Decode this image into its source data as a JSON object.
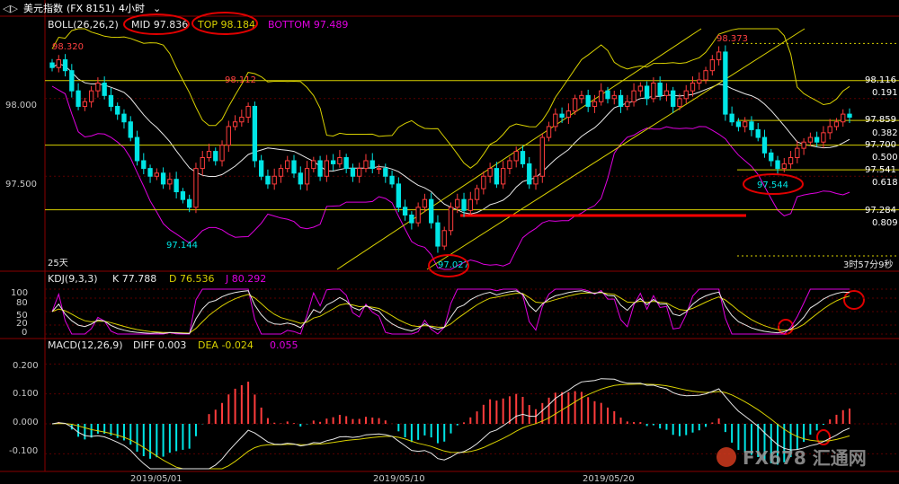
{
  "window": {
    "title": "美元指数",
    "symbol": "(FX 8151)",
    "period": "4小时"
  },
  "boll_header": {
    "name": "BOLL(26,26,2)",
    "mid": "MID 97.836",
    "top": "TOP 98.184",
    "bottom": "BOTTOM 97.489"
  },
  "kdj_header": {
    "name": "KDJ(9,3,3)",
    "k": "K 77.788",
    "d": "D 76.536",
    "j": "J 80.292"
  },
  "macd_header": {
    "name": "MACD(12,26,9)",
    "diff": "DIFF 0.003",
    "dea": "DEA -0.024",
    "macd": "0.055"
  },
  "price_axis": [
    "98.000",
    "97.500"
  ],
  "kdj_axis": [
    "100",
    "80",
    "50",
    "20",
    "0"
  ],
  "macd_axis": [
    "0.200",
    "0.100",
    "0.000",
    "-0.100"
  ],
  "date_axis": [
    "2019/05/01",
    "2019/05/10",
    "2019/05/20"
  ],
  "price_labels": {
    "p98320": "98.320",
    "p98112": "98.112",
    "p98373": "98.373",
    "p97144": "97.144",
    "p97027": "97.027",
    "p97544": "97.544",
    "days": "25天",
    "countdown": "3时57分9秒"
  },
  "fib_levels": [
    {
      "price": "98.116",
      "ratio": "0.191"
    },
    {
      "price": "97.859",
      "ratio": "0.382"
    },
    {
      "price": "97.700",
      "ratio": "0.500"
    },
    {
      "price": "97.541",
      "ratio": "0.618"
    },
    {
      "price": "97.284",
      "ratio": "0.809"
    }
  ],
  "watermark": "FX678 汇通网",
  "colors": {
    "up": "#ff3c3c",
    "down": "#00e5e5",
    "mid": "#e8e8e8",
    "upper": "#d8d000",
    "lower": "#e000e0",
    "fib": "#d8d000",
    "annotation": "#e00000"
  },
  "chart_data": {
    "type": "candlestick",
    "price_panel": {
      "ylim": [
        96.9,
        98.45
      ],
      "ticks": [
        98.0,
        97.5
      ],
      "boll": {
        "mid": 97.836,
        "top": 98.184,
        "bottom": 97.489
      },
      "fibonacci": [
        {
          "price": 98.116,
          "ratio": 0.191
        },
        {
          "price": 97.859,
          "ratio": 0.382
        },
        {
          "price": 97.7,
          "ratio": 0.5
        },
        {
          "price": 97.541,
          "ratio": 0.618
        },
        {
          "price": 97.284,
          "ratio": 0.809
        }
      ],
      "marked_points": [
        98.32,
        98.112,
        98.373,
        97.144,
        97.027,
        97.544
      ],
      "closes": [
        98.2,
        98.25,
        98.18,
        98.05,
        97.95,
        97.98,
        98.05,
        98.1,
        98.02,
        97.95,
        97.9,
        97.85,
        97.75,
        97.6,
        97.55,
        97.5,
        97.52,
        97.45,
        97.48,
        97.4,
        97.35,
        97.3,
        97.55,
        97.62,
        97.66,
        97.6,
        97.7,
        97.82,
        97.85,
        97.88,
        97.95,
        97.6,
        97.5,
        97.45,
        97.5,
        97.55,
        97.6,
        97.52,
        97.45,
        97.55,
        97.6,
        97.5,
        97.6,
        97.58,
        97.62,
        97.55,
        97.5,
        97.55,
        97.6,
        97.55,
        97.55,
        97.5,
        97.45,
        97.3,
        97.25,
        97.2,
        97.3,
        97.35,
        97.2,
        97.05,
        97.15,
        97.3,
        97.35,
        97.28,
        97.35,
        97.42,
        97.5,
        97.55,
        97.45,
        97.55,
        97.6,
        97.66,
        97.58,
        97.45,
        97.5,
        97.75,
        97.82,
        97.9,
        97.88,
        97.92,
        98.0,
        98.02,
        97.95,
        97.98,
        98.05,
        98.0,
        98.02,
        97.95,
        97.98,
        98.05,
        98.08,
        98.0,
        98.1,
        98.02,
        98.05,
        97.95,
        98.0,
        98.05,
        98.1,
        98.12,
        98.18,
        98.25,
        98.3,
        97.9,
        97.85,
        97.82,
        97.85,
        97.8,
        97.75,
        97.65,
        97.6,
        97.55,
        97.58,
        97.62,
        97.68,
        97.72,
        97.75,
        97.72,
        97.78,
        97.82,
        97.85,
        97.9,
        97.88
      ]
    },
    "kdj_panel": {
      "ylim": [
        0,
        100
      ],
      "ticks": [
        100,
        80,
        50,
        20,
        0
      ],
      "K": 77.788,
      "D": 76.536,
      "J": 80.292
    },
    "macd_panel": {
      "ylim": [
        -0.15,
        0.24
      ],
      "ticks": [
        0.2,
        0.1,
        0.0,
        -0.1
      ],
      "DIFF": 0.003,
      "DEA": -0.024,
      "MACD": 0.055
    },
    "x_dates": [
      "2019/05/01",
      "2019/05/10",
      "2019/05/20"
    ]
  }
}
